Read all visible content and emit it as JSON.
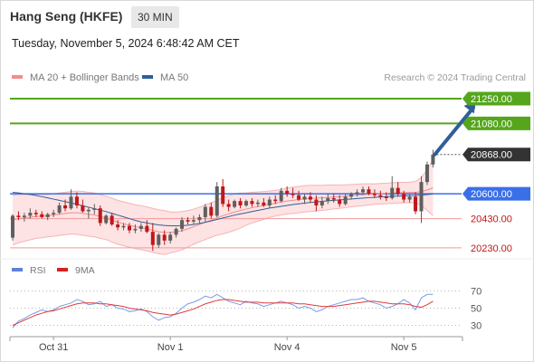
{
  "header": {
    "instrument": "Hang Seng (HKFE)",
    "timeframe": "30 MIN",
    "datetime": "Tuesday, November 5, 2024 6:48:42 AM CET"
  },
  "legend": {
    "items": [
      {
        "label": "MA 20 + Bollinger Bands",
        "color": "#f28c8c"
      },
      {
        "label": "MA 50",
        "color": "#2f5f99"
      }
    ],
    "credit": "Research © 2024 Trading Central"
  },
  "rsi_legend": {
    "items": [
      {
        "label": "RSI",
        "color": "#5b84d9"
      },
      {
        "label": "9MA",
        "color": "#d62020"
      }
    ]
  },
  "colors": {
    "up": "#5f5f5f",
    "down": "#c0171a",
    "band_fill": "#fde3e3",
    "band_line": "#f7b3b3",
    "ma20": "#f28c8c",
    "ma50": "#2f5f99",
    "resistance": "#55a61c",
    "pivot": "#3a6fe8",
    "support": "#f09a9a",
    "arrow": "#2f5f99",
    "rsi": "#7a9be8",
    "rsi_ma": "#e03a3a"
  },
  "chart_data": [
    {
      "type": "candlestick",
      "title": "Hang Seng (HKFE)",
      "ylim": [
        20180,
        21330
      ],
      "x_ticks": [
        "Oct 31",
        "Nov 1",
        "Nov 4",
        "Nov 5"
      ],
      "x_tick_index": [
        7,
        27,
        47,
        67
      ],
      "bar_count": 73,
      "candles": [
        [
          20300,
          20460,
          20280,
          20450
        ],
        [
          20450,
          20480,
          20420,
          20440
        ],
        [
          20440,
          20470,
          20410,
          20450
        ],
        [
          20450,
          20500,
          20430,
          20470
        ],
        [
          20470,
          20490,
          20440,
          20460
        ],
        [
          20460,
          20480,
          20430,
          20440
        ],
        [
          20440,
          20470,
          20420,
          20460
        ],
        [
          20460,
          20490,
          20440,
          20470
        ],
        [
          20470,
          20540,
          20460,
          20520
        ],
        [
          20520,
          20560,
          20480,
          20500
        ],
        [
          20500,
          20630,
          20490,
          20580
        ],
        [
          20580,
          20610,
          20500,
          20520
        ],
        [
          20520,
          20560,
          20470,
          20480
        ],
        [
          20480,
          20510,
          20430,
          20490
        ],
        [
          20490,
          20530,
          20460,
          20500
        ],
        [
          20500,
          20520,
          20380,
          20400
        ],
        [
          20400,
          20460,
          20390,
          20450
        ],
        [
          20450,
          20470,
          20380,
          20390
        ],
        [
          20390,
          20420,
          20350,
          20370
        ],
        [
          20370,
          20400,
          20350,
          20380
        ],
        [
          20380,
          20400,
          20330,
          20350
        ],
        [
          20350,
          20390,
          20330,
          20360
        ],
        [
          20360,
          20400,
          20340,
          20380
        ],
        [
          20380,
          20420,
          20330,
          20340
        ],
        [
          20340,
          20400,
          20210,
          20250
        ],
        [
          20250,
          20330,
          20230,
          20320
        ],
        [
          20320,
          20350,
          20250,
          20280
        ],
        [
          20280,
          20340,
          20260,
          20320
        ],
        [
          20320,
          20370,
          20300,
          20360
        ],
        [
          20360,
          20440,
          20340,
          20420
        ],
        [
          20420,
          20440,
          20390,
          20410
        ],
        [
          20410,
          20450,
          20390,
          20420
        ],
        [
          20420,
          20460,
          20400,
          20440
        ],
        [
          20440,
          20530,
          20410,
          20510
        ],
        [
          20510,
          20540,
          20430,
          20450
        ],
        [
          20450,
          20680,
          20440,
          20650
        ],
        [
          20650,
          20700,
          20510,
          20530
        ],
        [
          20530,
          20560,
          20480,
          20510
        ],
        [
          20510,
          20560,
          20500,
          20550
        ],
        [
          20550,
          20570,
          20500,
          20520
        ],
        [
          20520,
          20560,
          20510,
          20550
        ],
        [
          20550,
          20570,
          20510,
          20530
        ],
        [
          20530,
          20560,
          20510,
          20540
        ],
        [
          20540,
          20570,
          20510,
          20520
        ],
        [
          20520,
          20580,
          20500,
          20560
        ],
        [
          20560,
          20590,
          20530,
          20550
        ],
        [
          20550,
          20640,
          20540,
          20620
        ],
        [
          20620,
          20650,
          20580,
          20600
        ],
        [
          20600,
          20640,
          20570,
          20590
        ],
        [
          20590,
          20620,
          20550,
          20560
        ],
        [
          20560,
          20600,
          20530,
          20580
        ],
        [
          20580,
          20610,
          20540,
          20560
        ],
        [
          20560,
          20590,
          20480,
          20520
        ],
        [
          20520,
          20580,
          20500,
          20550
        ],
        [
          20550,
          20600,
          20530,
          20570
        ],
        [
          20570,
          20600,
          20540,
          20560
        ],
        [
          20560,
          20590,
          20510,
          20530
        ],
        [
          20530,
          20600,
          20520,
          20580
        ],
        [
          20580,
          20610,
          20560,
          20600
        ],
        [
          20600,
          20630,
          20580,
          20610
        ],
        [
          20610,
          20650,
          20590,
          20630
        ],
        [
          20630,
          20650,
          20590,
          20600
        ],
        [
          20600,
          20630,
          20570,
          20590
        ],
        [
          20590,
          20620,
          20560,
          20580
        ],
        [
          20580,
          20610,
          20550,
          20570
        ],
        [
          20570,
          20720,
          20560,
          20640
        ],
        [
          20640,
          20680,
          20580,
          20600
        ],
        [
          20600,
          20620,
          20540,
          20560
        ],
        [
          20560,
          20600,
          20540,
          20580
        ],
        [
          20580,
          20610,
          20460,
          20480
        ],
        [
          20480,
          20720,
          20400,
          20680
        ],
        [
          20680,
          20820,
          20660,
          20800
        ],
        [
          20800,
          20900,
          20780,
          20868
        ]
      ],
      "ma20": [
        20420,
        20430,
        20435,
        20440,
        20445,
        20447,
        20450,
        20455,
        20460,
        20465,
        20470,
        20470,
        20466,
        20460,
        20455,
        20445,
        20435,
        20420,
        20405,
        20395,
        20385,
        20375,
        20368,
        20360,
        20350,
        20340,
        20335,
        20335,
        20340,
        20348,
        20360,
        20375,
        20390,
        20405,
        20420,
        20435,
        20450,
        20462,
        20475,
        20485,
        20495,
        20505,
        20512,
        20520,
        20528,
        20535,
        20543,
        20550,
        20555,
        20560,
        20565,
        20568,
        20570,
        20572,
        20575,
        20578,
        20580,
        20583,
        20587,
        20590,
        20593,
        20596,
        20598,
        20600,
        20602,
        20605,
        20607,
        20608,
        20609,
        20610,
        20615,
        20625,
        20640
      ],
      "bb_width": [
        170,
        165,
        160,
        155,
        150,
        148,
        145,
        145,
        145,
        145,
        145,
        148,
        150,
        150,
        150,
        150,
        148,
        150,
        150,
        150,
        150,
        150,
        150,
        150,
        150,
        150,
        150,
        140,
        135,
        130,
        125,
        120,
        118,
        118,
        118,
        118,
        125,
        125,
        125,
        120,
        110,
        105,
        100,
        95,
        90,
        88,
        88,
        88,
        90,
        90,
        90,
        90,
        88,
        86,
        84,
        82,
        80,
        78,
        76,
        75,
        75,
        72,
        70,
        70,
        70,
        70,
        70,
        70,
        70,
        75,
        95,
        140,
        190
      ],
      "ma50": [
        20610,
        20606,
        20600,
        20595,
        20588,
        20580,
        20572,
        20563,
        20555,
        20546,
        20537,
        20528,
        20518,
        20508,
        20498,
        20488,
        20478,
        20466,
        20454,
        20442,
        20430,
        20418,
        20408,
        20400,
        20393,
        20387,
        20383,
        20381,
        20381,
        20382,
        20385,
        20390,
        20397,
        20405,
        20414,
        20424,
        20434,
        20444,
        20454,
        20462,
        20470,
        20478,
        20486,
        20494,
        20502,
        20508,
        20514,
        20520,
        20526,
        20531,
        20536,
        20540,
        20544,
        20548,
        20552,
        20555,
        20558,
        20561,
        20564,
        20567,
        20570,
        20573,
        20576,
        20578,
        20580,
        20582,
        20584,
        20586,
        20587,
        20588,
        20590,
        20594,
        20598
      ],
      "levels": [
        {
          "value": 21250,
          "label": "21250.00",
          "role": "resistance"
        },
        {
          "value": 21080,
          "label": "21080.00",
          "role": "resistance"
        },
        {
          "value": 20868,
          "label": "20868.00",
          "role": "last"
        },
        {
          "value": 20600,
          "label": "20600.00",
          "role": "pivot"
        },
        {
          "value": 20430,
          "label": "20430.00",
          "role": "support"
        },
        {
          "value": 20230,
          "label": "20230.00",
          "role": "support"
        }
      ],
      "arrow": {
        "from_index": 72,
        "from_value": 20868,
        "to_index": 80,
        "to_value": 21250
      }
    },
    {
      "type": "line",
      "title": "RSI",
      "ylim": [
        20,
        80
      ],
      "y_ticks": [
        70,
        50,
        30
      ],
      "series": [
        {
          "name": "RSI",
          "values": [
            27,
            35,
            38,
            42,
            45,
            48,
            46,
            48,
            52,
            54,
            56,
            60,
            58,
            54,
            55,
            58,
            52,
            54,
            50,
            49,
            46,
            47,
            49,
            46,
            40,
            36,
            39,
            40,
            44,
            50,
            55,
            57,
            60,
            64,
            62,
            66,
            62,
            58,
            56,
            54,
            58,
            56,
            55,
            52,
            54,
            56,
            58,
            56,
            54,
            50,
            52,
            50,
            46,
            48,
            52,
            54,
            56,
            58,
            60,
            60,
            62,
            58,
            56,
            54,
            50,
            52,
            55,
            60,
            56,
            48,
            62,
            66,
            66
          ]
        },
        {
          "name": "9MA",
          "values": [
            30,
            33,
            36,
            39,
            42,
            44,
            46,
            47,
            49,
            51,
            53,
            55,
            56,
            56,
            56,
            55,
            55,
            54,
            53,
            52,
            50,
            49,
            48,
            47,
            45,
            44,
            43,
            42,
            43,
            45,
            47,
            49,
            52,
            55,
            57,
            59,
            60,
            60,
            59,
            58,
            57,
            57,
            57,
            56,
            56,
            56,
            56,
            56,
            56,
            55,
            55,
            54,
            53,
            52,
            52,
            52,
            53,
            54,
            55,
            56,
            57,
            58,
            58,
            57,
            56,
            55,
            55,
            55,
            54,
            52,
            51,
            54,
            58
          ]
        }
      ]
    }
  ]
}
